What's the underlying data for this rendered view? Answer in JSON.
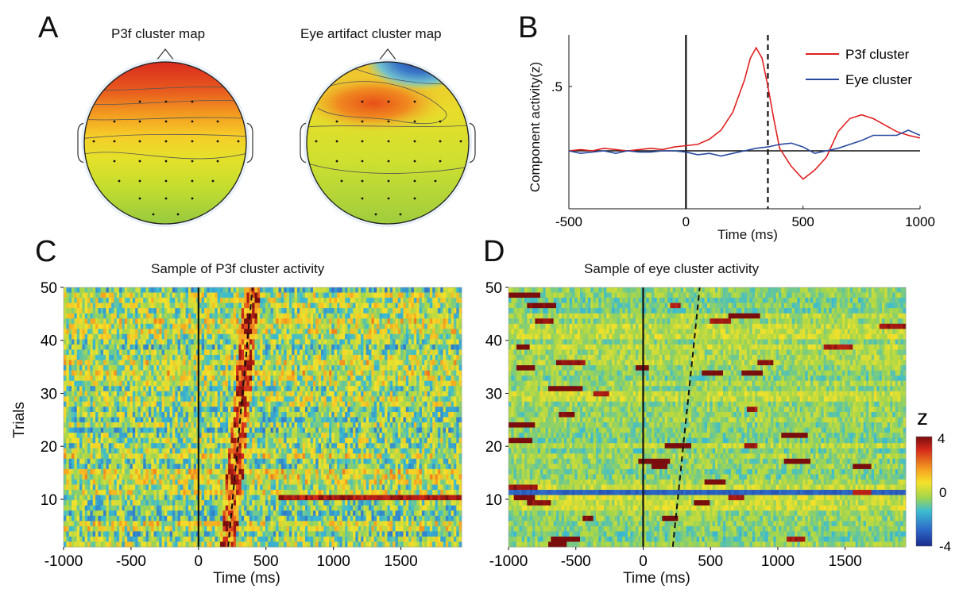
{
  "panels": {
    "A": {
      "letter": "A",
      "maps": [
        {
          "title": "P3f cluster map"
        },
        {
          "title": "Eye artifact cluster map"
        }
      ]
    },
    "B": {
      "letter": "B"
    },
    "C": {
      "letter": "C"
    },
    "D": {
      "letter": "D"
    }
  },
  "colors": {
    "p3f": "#e02020",
    "eye": "#2a4aa0",
    "axis": "#111111"
  },
  "chart_data": [
    {
      "id": "B",
      "type": "line",
      "title": "",
      "xlabel": "Time (ms)",
      "ylabel": "Component activity(z)",
      "xlim": [
        -500,
        1000
      ],
      "ylim": [
        -0.45,
        0.9
      ],
      "x_ticks": [
        "-500",
        "0",
        "500",
        "1000"
      ],
      "y_ticks": [
        ".5"
      ],
      "y_tick_values": [
        0.5
      ],
      "legend_position": "top-right",
      "vlines": [
        {
          "x": 0,
          "style": "solid"
        },
        {
          "x": 350,
          "style": "dashed"
        }
      ],
      "hline": 0,
      "series": [
        {
          "name": "P3f cluster",
          "color": "#e02020",
          "x": [
            -500,
            -450,
            -400,
            -350,
            -300,
            -250,
            -200,
            -150,
            -100,
            -50,
            0,
            50,
            100,
            150,
            200,
            250,
            275,
            300,
            325,
            350,
            375,
            400,
            450,
            500,
            550,
            600,
            650,
            700,
            750,
            800,
            850,
            900,
            950,
            1000
          ],
          "y": [
            0.0,
            0.01,
            0.0,
            0.02,
            0.01,
            0.0,
            0.01,
            0.02,
            0.01,
            0.03,
            0.04,
            0.05,
            0.09,
            0.16,
            0.3,
            0.55,
            0.72,
            0.8,
            0.72,
            0.5,
            0.25,
            0.02,
            -0.12,
            -0.22,
            -0.15,
            -0.05,
            0.15,
            0.25,
            0.28,
            0.25,
            0.2,
            0.15,
            0.12,
            0.1
          ]
        },
        {
          "name": "Eye cluster",
          "color": "#2a4aa0",
          "x": [
            -500,
            -450,
            -400,
            -350,
            -300,
            -250,
            -200,
            -150,
            -100,
            -50,
            0,
            50,
            100,
            150,
            200,
            250,
            300,
            350,
            400,
            450,
            500,
            550,
            600,
            650,
            700,
            750,
            800,
            850,
            900,
            950,
            1000
          ],
          "y": [
            0.0,
            -0.02,
            -0.01,
            0.0,
            -0.02,
            0.0,
            -0.01,
            -0.01,
            0.0,
            0.0,
            -0.01,
            -0.03,
            -0.02,
            -0.04,
            -0.02,
            0.0,
            0.02,
            0.03,
            0.05,
            0.06,
            0.03,
            -0.02,
            0.0,
            0.02,
            0.05,
            0.08,
            0.12,
            0.12,
            0.12,
            0.16,
            0.12
          ]
        }
      ]
    },
    {
      "id": "C",
      "type": "heatmap",
      "title": "Sample of P3f cluster activity",
      "xlabel": "Time (ms)",
      "ylabel": "Trials",
      "xlim": [
        -1000,
        1950
      ],
      "ylim": [
        1,
        50
      ],
      "x_ticks": [
        "-1000",
        "-500",
        "0",
        "500",
        "1000",
        "1500"
      ],
      "y_ticks": [
        "10",
        "20",
        "30",
        "40",
        "50"
      ],
      "vline_ms": 0,
      "rt_curve": {
        "trial_1_ms": 220,
        "trial_50_ms": 400
      }
    },
    {
      "id": "D",
      "type": "heatmap",
      "title": "Sample of eye cluster activity",
      "xlabel": "Time (ms)",
      "ylabel": "",
      "xlim": [
        -1000,
        1950
      ],
      "ylim": [
        1,
        50
      ],
      "x_ticks": [
        "-1000",
        "-500",
        "0",
        "500",
        "1000",
        "1500"
      ],
      "y_ticks": [
        "10",
        "20",
        "30",
        "40",
        "50"
      ],
      "vline_ms": 0,
      "rt_curve": {
        "trial_1_ms": 220,
        "trial_50_ms": 420
      },
      "colorbar": {
        "label": "z",
        "ticks": [
          "4",
          "0",
          "-4"
        ],
        "range": [
          -4,
          4
        ]
      }
    }
  ]
}
